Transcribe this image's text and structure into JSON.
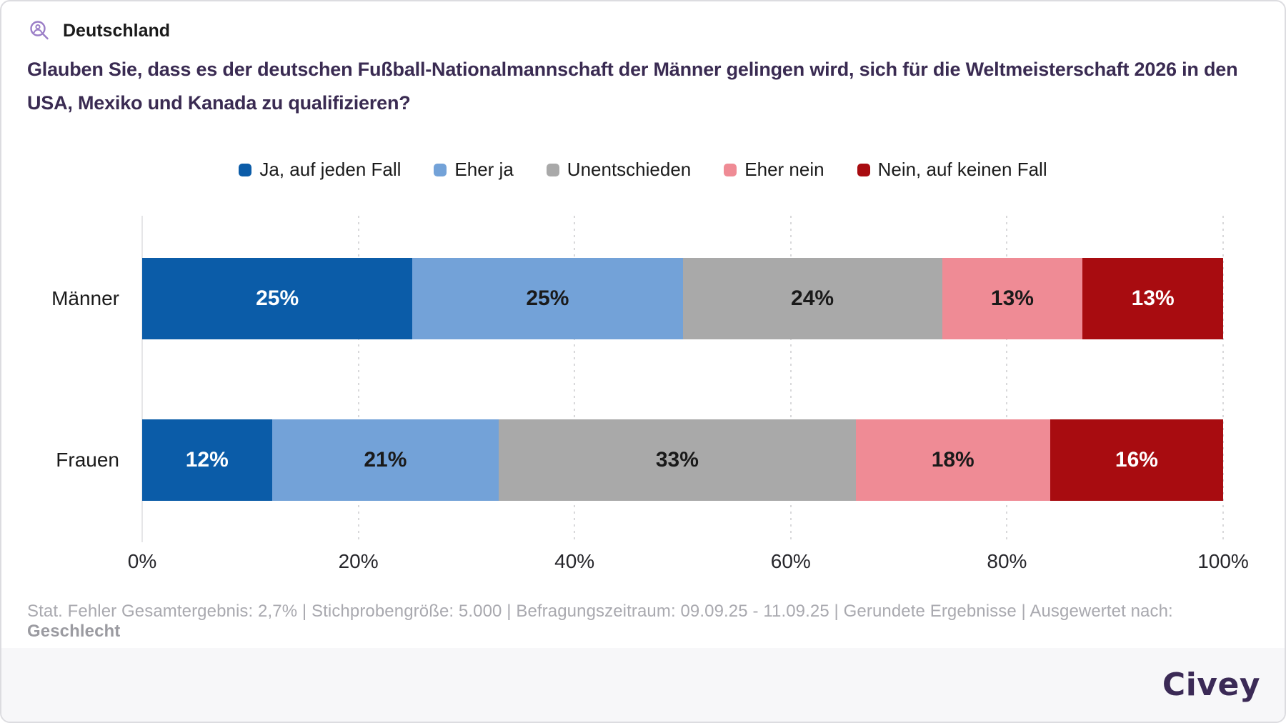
{
  "header": {
    "icon": "person-magnifier-icon",
    "region_label": "Deutschland"
  },
  "question": "Glauben Sie, dass es der deutschen Fußball-Nationalmannschaft der Männer gelingen wird, sich für die Weltmeisterschaft 2026 in den USA, Mexiko und Kanada zu qualifizieren?",
  "chart_data": {
    "type": "bar",
    "orientation": "horizontal",
    "stacked": true,
    "unit": "%",
    "categories": [
      "Männer",
      "Frauen"
    ],
    "series": [
      {
        "name": "Ja, auf jeden Fall",
        "color": "#0b5ca8",
        "label_color": "#ffffff",
        "values": [
          25,
          12
        ]
      },
      {
        "name": "Eher ja",
        "color": "#73a2d8",
        "label_color": "#1a1a1a",
        "values": [
          25,
          21
        ]
      },
      {
        "name": "Unentschieden",
        "color": "#a9a9a9",
        "label_color": "#1a1a1a",
        "values": [
          24,
          33
        ]
      },
      {
        "name": "Eher nein",
        "color": "#ef8b95",
        "label_color": "#1a1a1a",
        "values": [
          13,
          18
        ]
      },
      {
        "name": "Nein, auf keinen Fall",
        "color": "#a80c10",
        "label_color": "#ffffff",
        "values": [
          13,
          16
        ]
      }
    ],
    "x_ticks": [
      "0%",
      "20%",
      "40%",
      "60%",
      "80%",
      "100%"
    ],
    "xlim": [
      0,
      100
    ],
    "legend_position": "top",
    "grid": "vertical-dotted"
  },
  "footer": {
    "stats_prefix": "Stat. Fehler Gesamtergebnis: 2,7% | Stichprobengröße: 5.000 | Befragungszeitraum: 09.09.25 - 11.09.25 | Gerundete Ergebnisse | Ausgewertet nach: ",
    "stats_bold": "Geschlecht",
    "brand": "Civey"
  },
  "colors": {
    "accent_purple": "#9b7ec7",
    "question_text": "#3a2b52",
    "brand_text": "#3b2a56",
    "muted_text": "#a9a9af"
  }
}
